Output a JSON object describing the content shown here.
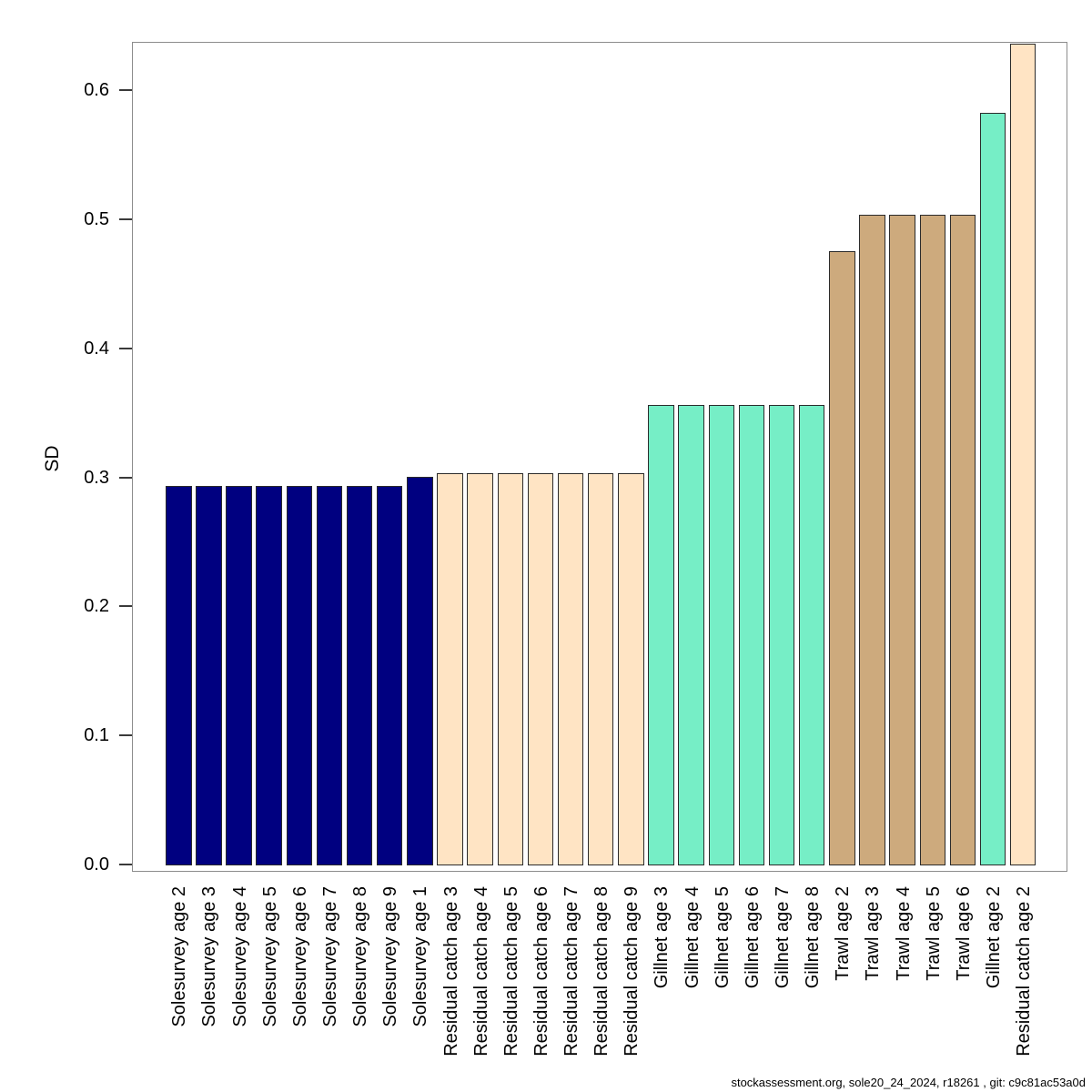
{
  "page": {
    "background": "#ffffff",
    "footer": "stockassessment.org, sole20_24_2024, r18261 , git: c9c81ac53a0d"
  },
  "chart_data": {
    "type": "bar",
    "title": "",
    "xlabel": "",
    "ylabel": "SD",
    "ylim": [
      0,
      0.637
    ],
    "grid": false,
    "legend_position": "none",
    "x_label_rotation": 90,
    "axis_box_color": "#8c8c8c",
    "bar_border_color": "#2b2b2b",
    "ytick_values": [
      0.0,
      0.1,
      0.2,
      0.3,
      0.4,
      0.5,
      0.6
    ],
    "ytick_labels": [
      "0.0",
      "0.1",
      "0.2",
      "0.3",
      "0.4",
      "0.5",
      "0.6"
    ],
    "fleet_colors": {
      "Solesurvey": "#000080",
      "Residual catch": "#FFE4C4",
      "Gillnet": "#76EEC6",
      "Trawl": "#CDAA7D"
    },
    "bars": [
      {
        "label": "Solesurvey age 2",
        "fleet": "Solesurvey",
        "value": 0.294
      },
      {
        "label": "Solesurvey age 3",
        "fleet": "Solesurvey",
        "value": 0.294
      },
      {
        "label": "Solesurvey age 4",
        "fleet": "Solesurvey",
        "value": 0.294
      },
      {
        "label": "Solesurvey age 5",
        "fleet": "Solesurvey",
        "value": 0.294
      },
      {
        "label": "Solesurvey age 6",
        "fleet": "Solesurvey",
        "value": 0.294
      },
      {
        "label": "Solesurvey age 7",
        "fleet": "Solesurvey",
        "value": 0.294
      },
      {
        "label": "Solesurvey age 8",
        "fleet": "Solesurvey",
        "value": 0.294
      },
      {
        "label": "Solesurvey age 9",
        "fleet": "Solesurvey",
        "value": 0.294
      },
      {
        "label": "Solesurvey age 1",
        "fleet": "Solesurvey",
        "value": 0.301
      },
      {
        "label": "Residual catch age 3",
        "fleet": "Residual catch",
        "value": 0.304
      },
      {
        "label": "Residual catch age 4",
        "fleet": "Residual catch",
        "value": 0.304
      },
      {
        "label": "Residual catch age 5",
        "fleet": "Residual catch",
        "value": 0.304
      },
      {
        "label": "Residual catch age 6",
        "fleet": "Residual catch",
        "value": 0.304
      },
      {
        "label": "Residual catch age 7",
        "fleet": "Residual catch",
        "value": 0.304
      },
      {
        "label": "Residual catch age 8",
        "fleet": "Residual catch",
        "value": 0.304
      },
      {
        "label": "Residual catch age 9",
        "fleet": "Residual catch",
        "value": 0.304
      },
      {
        "label": "Gillnet age 3",
        "fleet": "Gillnet",
        "value": 0.357
      },
      {
        "label": "Gillnet age 4",
        "fleet": "Gillnet",
        "value": 0.357
      },
      {
        "label": "Gillnet age 5",
        "fleet": "Gillnet",
        "value": 0.357
      },
      {
        "label": "Gillnet age 6",
        "fleet": "Gillnet",
        "value": 0.357
      },
      {
        "label": "Gillnet age 7",
        "fleet": "Gillnet",
        "value": 0.357
      },
      {
        "label": "Gillnet age 8",
        "fleet": "Gillnet",
        "value": 0.357
      },
      {
        "label": "Trawl age 2",
        "fleet": "Trawl",
        "value": 0.476
      },
      {
        "label": "Trawl age 3",
        "fleet": "Trawl",
        "value": 0.504
      },
      {
        "label": "Trawl age 4",
        "fleet": "Trawl",
        "value": 0.504
      },
      {
        "label": "Trawl age 5",
        "fleet": "Trawl",
        "value": 0.504
      },
      {
        "label": "Trawl age 6",
        "fleet": "Trawl",
        "value": 0.504
      },
      {
        "label": "Gillnet age 2",
        "fleet": "Gillnet",
        "value": 0.583
      },
      {
        "label": "Residual catch age 2",
        "fleet": "Residual catch",
        "value": 0.637
      }
    ]
  }
}
